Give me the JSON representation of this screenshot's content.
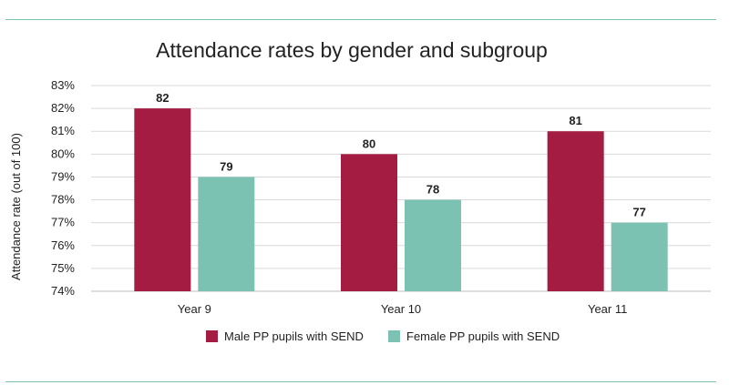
{
  "chart_data": {
    "type": "bar",
    "title": "Attendance rates by gender and subgroup",
    "xlabel": "",
    "ylabel": "Attendance rate (out of 100)",
    "ylim": [
      74,
      83
    ],
    "yticks": [
      74,
      75,
      76,
      77,
      78,
      79,
      80,
      81,
      82,
      83
    ],
    "ytick_suffix": "%",
    "categories": [
      "Year 9",
      "Year 10",
      "Year 11"
    ],
    "series": [
      {
        "name": "Male PP pupils with SEND",
        "color": "#a51c43",
        "values": [
          82,
          80,
          81
        ]
      },
      {
        "name": "Female PP pupils with SEND",
        "color": "#7cc2b3",
        "values": [
          79,
          78,
          77
        ]
      }
    ],
    "grid": true,
    "legend": "bottom-center"
  }
}
